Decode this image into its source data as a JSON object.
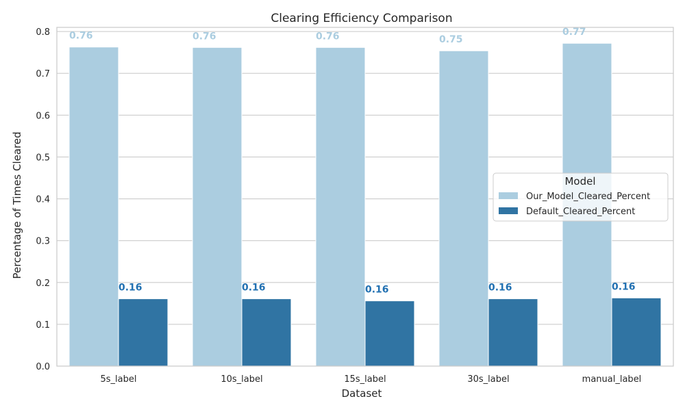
{
  "chart_data": {
    "type": "bar",
    "title": "Clearing Efficiency Comparison",
    "xlabel": "Dataset",
    "ylabel": "Percentage of Times Cleared",
    "categories": [
      "5s_label",
      "10s_label",
      "15s_label",
      "30s_label",
      "manual_label"
    ],
    "ylim": [
      0,
      0.81
    ],
    "yticks": [
      0.0,
      0.1,
      0.2,
      0.3,
      0.4,
      0.5,
      0.6,
      0.7,
      0.8
    ],
    "grid": "horizontal",
    "legend": {
      "title": "Model",
      "placement": "center-right"
    },
    "series": [
      {
        "name": "Our_Model_Cleared_Percent",
        "color": "#abcde0",
        "label_color": "#abcde0",
        "values": [
          0.763,
          0.762,
          0.762,
          0.754,
          0.772
        ],
        "labels": [
          "0.76",
          "0.76",
          "0.76",
          "0.75",
          "0.77"
        ]
      },
      {
        "name": "Default_Cleared_Percent",
        "color": "#3074a3",
        "label_color": "#2271b2",
        "values": [
          0.161,
          0.161,
          0.156,
          0.161,
          0.163
        ],
        "labels": [
          "0.16",
          "0.16",
          "0.16",
          "0.16",
          "0.16"
        ]
      }
    ]
  }
}
